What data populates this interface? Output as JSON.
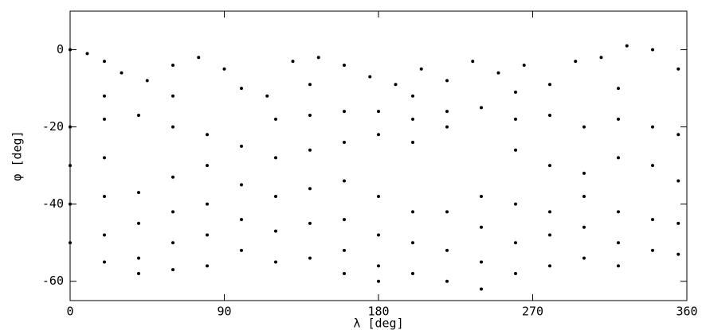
{
  "chart_data": {
    "type": "scatter",
    "xlabel": "λ  [deg]",
    "ylabel": "φ  [deg]",
    "xlim": [
      0,
      360
    ],
    "xticks": [
      0,
      90,
      180,
      270,
      360
    ],
    "ylim": [
      -65,
      10
    ],
    "yticks": [
      0,
      -20,
      -40,
      -60
    ],
    "color": "#000000",
    "x": [
      0,
      10,
      20,
      30,
      45,
      60,
      75,
      90,
      100,
      115,
      130,
      145,
      160,
      175,
      190,
      205,
      220,
      235,
      250,
      265,
      280,
      295,
      310,
      325,
      340,
      355,
      20,
      60,
      140,
      200,
      260,
      320,
      0,
      0,
      0,
      0,
      20,
      20,
      20,
      20,
      20,
      40,
      40,
      40,
      40,
      40,
      60,
      60,
      60,
      60,
      60,
      80,
      80,
      80,
      80,
      80,
      100,
      100,
      100,
      100,
      120,
      120,
      120,
      120,
      120,
      140,
      140,
      140,
      140,
      140,
      160,
      160,
      160,
      160,
      160,
      160,
      180,
      180,
      180,
      180,
      180,
      180,
      200,
      200,
      200,
      200,
      200,
      220,
      220,
      220,
      220,
      220,
      240,
      240,
      240,
      240,
      240,
      260,
      260,
      260,
      260,
      260,
      280,
      280,
      280,
      280,
      280,
      300,
      300,
      300,
      300,
      300,
      320,
      320,
      320,
      320,
      320,
      340,
      340,
      340,
      340,
      355,
      355,
      355,
      355
    ],
    "y": [
      0,
      -1,
      -3,
      -6,
      -8,
      -4,
      -2,
      -5,
      -10,
      -12,
      -3,
      -2,
      -4,
      -7,
      -9,
      -5,
      -8,
      -3,
      -6,
      -4,
      -9,
      -3,
      -2,
      1,
      0,
      -5,
      -12,
      -12,
      -9,
      -12,
      -11,
      -10,
      -20,
      -30,
      -40,
      -50,
      -18,
      -28,
      -38,
      -48,
      -55,
      -17,
      -37,
      -45,
      -54,
      -58,
      -20,
      -33,
      -42,
      -50,
      -57,
      -22,
      -30,
      -40,
      -48,
      -56,
      -25,
      -35,
      -44,
      -52,
      -18,
      -28,
      -38,
      -47,
      -55,
      -17,
      -26,
      -36,
      -45,
      -54,
      -16,
      -24,
      -34,
      -44,
      -52,
      -58,
      -16,
      -22,
      -38,
      -48,
      -56,
      -60,
      -18,
      -24,
      -42,
      -50,
      -58,
      -16,
      -20,
      -42,
      -52,
      -60,
      -15,
      -38,
      -46,
      -55,
      -62,
      -18,
      -26,
      -40,
      -50,
      -58,
      -17,
      -30,
      -42,
      -48,
      -56,
      -20,
      -32,
      -38,
      -46,
      -54,
      -18,
      -28,
      -42,
      -50,
      -56,
      -20,
      -30,
      -44,
      -52,
      -22,
      -34,
      -45,
      -53
    ]
  }
}
